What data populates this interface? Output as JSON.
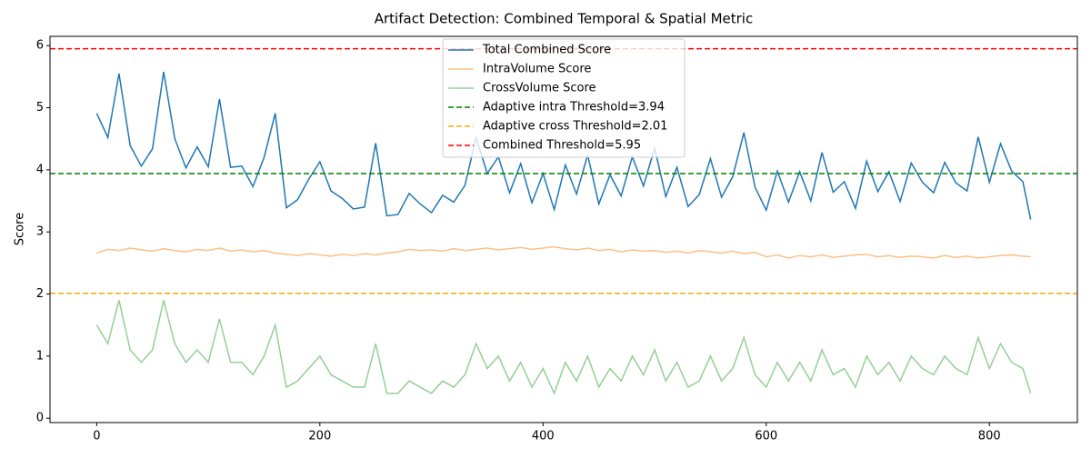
{
  "chart_data": {
    "type": "line",
    "title": "Artifact Detection: Combined Temporal & Spatial Metric",
    "y_label": "Score",
    "x": [
      0,
      10,
      20,
      30,
      40,
      50,
      60,
      70,
      80,
      90,
      100,
      110,
      120,
      130,
      140,
      150,
      160,
      170,
      180,
      190,
      200,
      210,
      220,
      230,
      240,
      250,
      260,
      270,
      280,
      290,
      300,
      310,
      320,
      330,
      340,
      350,
      360,
      370,
      380,
      390,
      400,
      410,
      420,
      430,
      440,
      450,
      460,
      470,
      480,
      490,
      500,
      510,
      520,
      530,
      540,
      550,
      560,
      570,
      580,
      590,
      600,
      610,
      620,
      630,
      640,
      650,
      660,
      670,
      680,
      690,
      700,
      710,
      720,
      730,
      740,
      750,
      760,
      770,
      780,
      790,
      800,
      810,
      820,
      830,
      837
    ],
    "series": [
      {
        "name": "Total Combined Score",
        "color": "#1f77b4",
        "alpha": 1,
        "values": [
          4.91,
          4.52,
          5.55,
          4.39,
          4.06,
          4.34,
          5.58,
          4.5,
          4.03,
          4.37,
          4.05,
          5.14,
          4.04,
          4.06,
          3.73,
          4.2,
          4.91,
          3.39,
          3.52,
          3.85,
          4.13,
          3.66,
          3.54,
          3.37,
          3.4,
          4.43,
          3.26,
          3.28,
          3.62,
          3.45,
          3.31,
          3.59,
          3.48,
          3.75,
          4.52,
          3.94,
          4.21,
          3.63,
          4.1,
          3.47,
          3.94,
          3.36,
          4.08,
          3.61,
          4.24,
          3.45,
          3.92,
          3.58,
          4.21,
          3.74,
          4.35,
          3.57,
          4.04,
          3.41,
          3.6,
          4.18,
          3.56,
          3.89,
          4.6,
          3.72,
          3.35,
          3.98,
          3.48,
          3.97,
          3.5,
          4.28,
          3.64,
          3.81,
          3.38,
          4.14,
          3.65,
          3.97,
          3.49,
          4.11,
          3.8,
          3.63,
          4.12,
          3.79,
          3.66,
          4.53,
          3.8,
          4.42,
          3.98,
          3.81,
          3.2
        ]
      },
      {
        "name": "IntraVolume Score",
        "color": "#ff7f0e",
        "alpha": 0.5,
        "values": [
          2.66,
          2.72,
          2.7,
          2.74,
          2.71,
          2.69,
          2.73,
          2.7,
          2.68,
          2.72,
          2.7,
          2.74,
          2.69,
          2.71,
          2.68,
          2.7,
          2.66,
          2.64,
          2.62,
          2.65,
          2.63,
          2.61,
          2.64,
          2.62,
          2.65,
          2.63,
          2.66,
          2.68,
          2.72,
          2.7,
          2.71,
          2.69,
          2.73,
          2.7,
          2.72,
          2.74,
          2.71,
          2.73,
          2.75,
          2.72,
          2.74,
          2.76,
          2.73,
          2.71,
          2.74,
          2.7,
          2.72,
          2.68,
          2.71,
          2.69,
          2.7,
          2.67,
          2.69,
          2.66,
          2.7,
          2.68,
          2.66,
          2.69,
          2.65,
          2.67,
          2.6,
          2.63,
          2.58,
          2.62,
          2.6,
          2.63,
          2.59,
          2.61,
          2.63,
          2.64,
          2.6,
          2.62,
          2.59,
          2.61,
          2.6,
          2.58,
          2.62,
          2.59,
          2.61,
          2.58,
          2.6,
          2.62,
          2.63,
          2.61,
          2.6
        ]
      },
      {
        "name": "CrossVolume Score",
        "color": "#2ca02c",
        "alpha": 0.5,
        "values": [
          1.5,
          1.2,
          1.9,
          1.1,
          0.9,
          1.1,
          1.9,
          1.2,
          0.9,
          1.1,
          0.9,
          1.6,
          0.9,
          0.9,
          0.7,
          1.0,
          1.5,
          0.5,
          0.6,
          0.8,
          1.0,
          0.7,
          0.6,
          0.5,
          0.5,
          1.2,
          0.4,
          0.4,
          0.6,
          0.5,
          0.4,
          0.6,
          0.5,
          0.7,
          1.2,
          0.8,
          1.0,
          0.6,
          0.9,
          0.5,
          0.8,
          0.4,
          0.9,
          0.6,
          1.0,
          0.5,
          0.8,
          0.6,
          1.0,
          0.7,
          1.1,
          0.6,
          0.9,
          0.5,
          0.6,
          1.0,
          0.6,
          0.8,
          1.3,
          0.7,
          0.5,
          0.9,
          0.6,
          0.9,
          0.6,
          1.1,
          0.7,
          0.8,
          0.5,
          1.0,
          0.7,
          0.9,
          0.6,
          1.0,
          0.8,
          0.7,
          1.0,
          0.8,
          0.7,
          1.3,
          0.8,
          1.2,
          0.9,
          0.8,
          0.4
        ]
      }
    ],
    "hlines": [
      {
        "name": "Adaptive intra Threshold=3.94",
        "value": 3.94,
        "color": "green"
      },
      {
        "name": "Adaptive cross Threshold=2.01",
        "value": 2.01,
        "color": "orange"
      },
      {
        "name": "Combined Threshold=5.95",
        "value": 5.95,
        "color": "red"
      }
    ],
    "xlim": [
      -41.85,
      878.85
    ],
    "ylim": [
      -0.07,
      6.15
    ],
    "xticks": [
      0,
      200,
      400,
      600,
      800
    ],
    "yticks": [
      0,
      1,
      2,
      3,
      4,
      5,
      6
    ],
    "grid": false,
    "legend": "upper center"
  }
}
